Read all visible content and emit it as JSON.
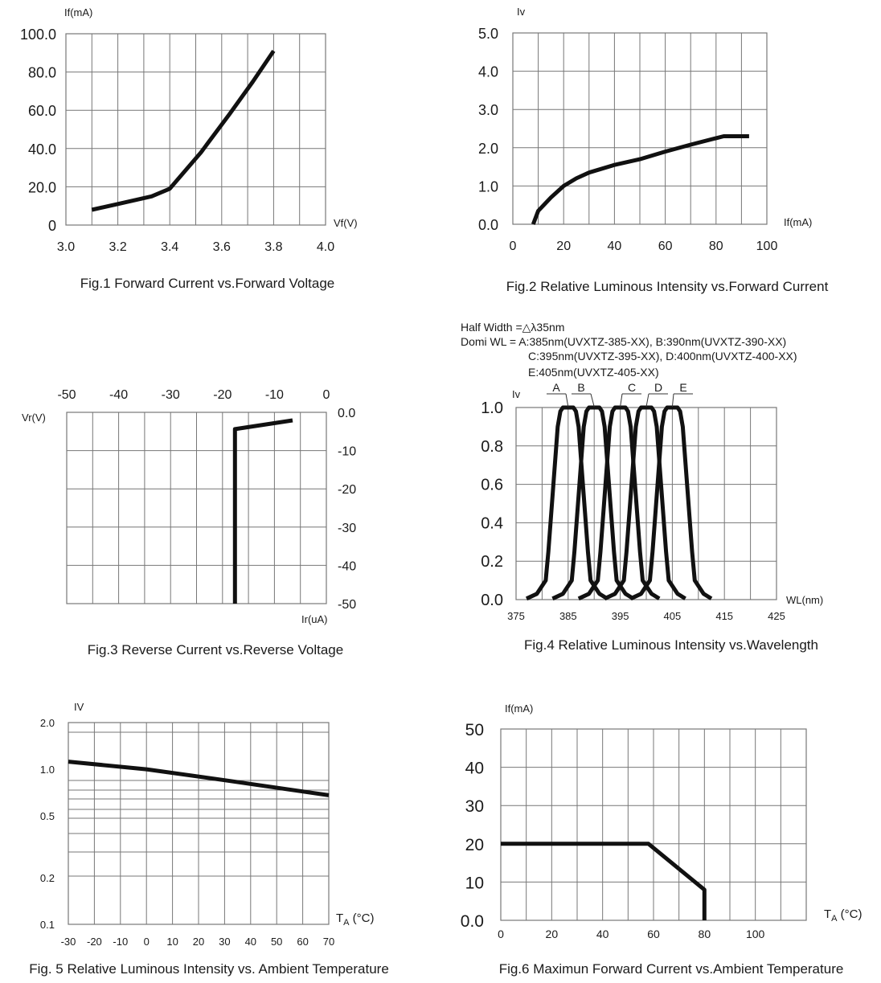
{
  "chart_data": [
    {
      "type": "line",
      "title": "Fig.1 Forward Current vs.Forward Voltage",
      "xlabel": "Vf(V)",
      "ylabel": "If(mA)",
      "xlim": [
        3.0,
        4.0
      ],
      "ylim": [
        0,
        100
      ],
      "grid": true,
      "x_ticks": [
        {
          "v": 3.0,
          "t": "3.0"
        },
        {
          "v": 3.2,
          "t": "3.2"
        },
        {
          "v": 3.4,
          "t": "3.4"
        },
        {
          "v": 3.6,
          "t": "3.6"
        },
        {
          "v": 3.8,
          "t": "3.8"
        },
        {
          "v": 4.0,
          "t": "4.0"
        }
      ],
      "y_ticks": [
        {
          "v": 0,
          "t": "0"
        },
        {
          "v": 20,
          "t": "20.0"
        },
        {
          "v": 40,
          "t": "40.0"
        },
        {
          "v": 60,
          "t": "60.0"
        },
        {
          "v": 80,
          "t": "80.0"
        },
        {
          "v": 100,
          "t": "100.0"
        }
      ],
      "series": [
        {
          "x": [
            3.1,
            3.2,
            3.33,
            3.4,
            3.52,
            3.63,
            3.72,
            3.8
          ],
          "y": [
            8,
            11,
            15,
            19,
            38,
            58,
            75,
            91
          ]
        }
      ]
    },
    {
      "type": "line",
      "title": "Fig.2 Relative Luminous Intensity vs.Forward Current",
      "xlabel": "If(mA)",
      "ylabel": "Iv",
      "xlim": [
        0,
        100
      ],
      "ylim": [
        0,
        5
      ],
      "grid": true,
      "x_ticks": [
        {
          "v": 0,
          "t": "0"
        },
        {
          "v": 20,
          "t": "20"
        },
        {
          "v": 40,
          "t": "40"
        },
        {
          "v": 60,
          "t": "60"
        },
        {
          "v": 80,
          "t": "80"
        },
        {
          "v": 100,
          "t": "100"
        }
      ],
      "y_ticks": [
        {
          "v": 0,
          "t": "0.0"
        },
        {
          "v": 1,
          "t": "1.0"
        },
        {
          "v": 2,
          "t": "2.0"
        },
        {
          "v": 3,
          "t": "3.0"
        },
        {
          "v": 4,
          "t": "4.0"
        },
        {
          "v": 5,
          "t": "5.0"
        }
      ],
      "series": [
        {
          "x": [
            8,
            10,
            15,
            20,
            25,
            30,
            40,
            50,
            60,
            70,
            80,
            83,
            93
          ],
          "y": [
            0,
            0.35,
            0.7,
            1.0,
            1.2,
            1.35,
            1.55,
            1.7,
            1.9,
            2.08,
            2.25,
            2.3,
            2.3
          ]
        }
      ]
    },
    {
      "type": "line",
      "title": "Fig.3 Reverse Current vs.Reverse Voltage",
      "xlabel": "Ir(uA)",
      "ylabel": "Vr(V)",
      "xlim": [
        -50,
        0
      ],
      "ylim": [
        -50,
        0
      ],
      "grid": true,
      "x_ticks": [
        {
          "v": -50,
          "t": "-50"
        },
        {
          "v": -40,
          "t": "-40"
        },
        {
          "v": -30,
          "t": "-30"
        },
        {
          "v": -20,
          "t": "-20"
        },
        {
          "v": -10,
          "t": "-10"
        },
        {
          "v": 0,
          "t": "0"
        }
      ],
      "y_ticks": [
        {
          "v": 0,
          "t": "0.0"
        },
        {
          "v": -10,
          "t": "-10"
        },
        {
          "v": -20,
          "t": "-20"
        },
        {
          "v": -30,
          "t": "-30"
        },
        {
          "v": -40,
          "t": "-40"
        },
        {
          "v": -50,
          "t": "-50"
        }
      ],
      "series": [
        {
          "x": [
            -6.5,
            -17.6,
            -17.6
          ],
          "y": [
            -2.1,
            -4.4,
            -50
          ]
        }
      ]
    },
    {
      "type": "line",
      "title": "Fig.4 Relative Luminous Intensity vs.Wavelength",
      "xlabel": "WL(nm)",
      "ylabel": "Iv",
      "xlim": [
        375,
        425
      ],
      "ylim": [
        0,
        1.0
      ],
      "grid": true,
      "annotations": [
        "Half Width =△λ35nm",
        "Domi WL = A:385nm(UVXTZ-385-XX), B:390nm(UVXTZ-390-XX)",
        "C:395nm(UVXTZ-395-XX), D:400nm(UVXTZ-400-XX)",
        "E:405nm(UVXTZ-405-XX)"
      ],
      "x_ticks": [
        {
          "v": 375,
          "t": "375"
        },
        {
          "v": 385,
          "t": "385"
        },
        {
          "v": 395,
          "t": "395"
        },
        {
          "v": 405,
          "t": "405"
        },
        {
          "v": 415,
          "t": "415"
        },
        {
          "v": 425,
          "t": "425"
        }
      ],
      "y_ticks": [
        {
          "v": 0,
          "t": "0.0"
        },
        {
          "v": 0.2,
          "t": "0.2"
        },
        {
          "v": 0.4,
          "t": "0.4"
        },
        {
          "v": 0.6,
          "t": "0.6"
        },
        {
          "v": 0.8,
          "t": "0.8"
        },
        {
          "v": 1.0,
          "t": "1.0"
        }
      ],
      "series": [
        {
          "name": "A",
          "x": [
            377,
            379,
            380.7,
            381.2,
            383,
            383.5,
            384,
            386,
            386.5,
            387,
            388.8,
            389.3,
            391,
            392.5
          ],
          "y": [
            0.005,
            0.03,
            0.1,
            0.25,
            0.9,
            0.98,
            1,
            1,
            0.98,
            0.9,
            0.25,
            0.1,
            0.03,
            0.005
          ]
        },
        {
          "name": "B",
          "x": [
            382,
            384,
            385.7,
            386.2,
            388,
            388.5,
            389,
            391,
            391.5,
            392,
            393.8,
            394.3,
            396,
            397.5
          ],
          "y": [
            0.005,
            0.03,
            0.1,
            0.25,
            0.9,
            0.98,
            1,
            1,
            0.98,
            0.9,
            0.25,
            0.1,
            0.03,
            0.005
          ]
        },
        {
          "name": "C",
          "x": [
            387,
            389,
            390.7,
            391.2,
            393,
            393.5,
            394,
            396,
            396.5,
            397,
            398.8,
            399.3,
            401,
            402.5
          ],
          "y": [
            0.005,
            0.03,
            0.1,
            0.25,
            0.9,
            0.98,
            1,
            1,
            0.98,
            0.9,
            0.25,
            0.1,
            0.03,
            0.005
          ]
        },
        {
          "name": "D",
          "x": [
            392,
            394,
            395.7,
            396.2,
            398,
            398.5,
            399,
            401,
            401.5,
            402,
            403.8,
            404.3,
            406,
            407.5
          ],
          "y": [
            0.005,
            0.03,
            0.1,
            0.25,
            0.9,
            0.98,
            1,
            1,
            0.98,
            0.9,
            0.25,
            0.1,
            0.03,
            0.005
          ]
        },
        {
          "name": "E",
          "x": [
            397,
            399,
            400.7,
            401.2,
            403,
            403.5,
            404,
            406,
            406.5,
            407,
            408.8,
            409.3,
            411,
            412.5
          ],
          "y": [
            0.005,
            0.03,
            0.1,
            0.25,
            0.9,
            0.98,
            1,
            1,
            0.98,
            0.9,
            0.25,
            0.1,
            0.03,
            0.005
          ]
        }
      ]
    },
    {
      "type": "line",
      "title": "Fig. 5 Relative Luminous Intensity vs. Ambient Temperature",
      "xlabel": "TA (°C)",
      "ylabel": "IV",
      "xlim": [
        -30,
        70
      ],
      "ylim": [
        0.1,
        2.0
      ],
      "yscale": "log",
      "grid": true,
      "x_ticks": [
        {
          "v": -30,
          "t": "-30"
        },
        {
          "v": -20,
          "t": "-20"
        },
        {
          "v": -10,
          "t": "-10"
        },
        {
          "v": 0,
          "t": "0"
        },
        {
          "v": 10,
          "t": "10"
        },
        {
          "v": 20,
          "t": "20"
        },
        {
          "v": 30,
          "t": "30"
        },
        {
          "v": 40,
          "t": "40"
        },
        {
          "v": 50,
          "t": "50"
        },
        {
          "v": 60,
          "t": "60"
        },
        {
          "v": 70,
          "t": "70"
        }
      ],
      "y_ticks": [
        {
          "v": 0.1,
          "t": "0.1"
        },
        {
          "v": 0.2,
          "t": "0.2"
        },
        {
          "v": 0.5,
          "t": "0.5"
        },
        {
          "v": 1.0,
          "t": "1.0"
        },
        {
          "v": 2.0,
          "t": "2.0"
        }
      ],
      "series": [
        {
          "x": [
            -30,
            0,
            30,
            70
          ],
          "y": [
            1.12,
            1.0,
            0.85,
            0.68
          ]
        }
      ]
    },
    {
      "type": "line",
      "title": "Fig.6 Maximun Forward Current vs.Ambient Temperature",
      "xlabel": "TA (°C)",
      "ylabel": "If(mA)",
      "xlim": [
        0,
        120
      ],
      "ylim": [
        0,
        50
      ],
      "grid": true,
      "x_ticks": [
        {
          "v": 0,
          "t": "0"
        },
        {
          "v": 20,
          "t": "20"
        },
        {
          "v": 40,
          "t": "40"
        },
        {
          "v": 60,
          "t": "60"
        },
        {
          "v": 80,
          "t": "80"
        },
        {
          "v": 100,
          "t": "100"
        }
      ],
      "y_ticks": [
        {
          "v": 0,
          "t": "0.0"
        },
        {
          "v": 10,
          "t": "10"
        },
        {
          "v": 20,
          "t": "20"
        },
        {
          "v": 30,
          "t": "30"
        },
        {
          "v": 40,
          "t": "40"
        },
        {
          "v": 50,
          "t": "50"
        }
      ],
      "series": [
        {
          "x": [
            0,
            58,
            80,
            80
          ],
          "y": [
            20,
            20,
            8,
            0
          ]
        }
      ]
    }
  ]
}
